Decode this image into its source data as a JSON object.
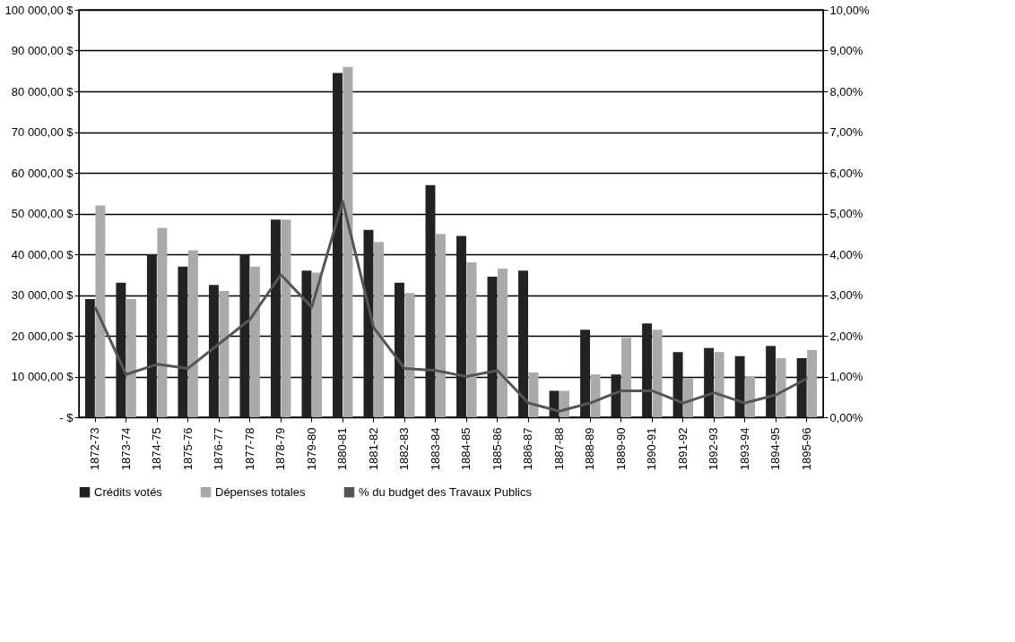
{
  "chart_data": {
    "type": "bar",
    "categories": [
      "1872-73",
      "1873-74",
      "1874-75",
      "1875-76",
      "1876-77",
      "1877-78",
      "1878-79",
      "1879-80",
      "1880-81",
      "1881-82",
      "1882-83",
      "1883-84",
      "1884-85",
      "1885-86",
      "1886-87",
      "1887-88",
      "1888-89",
      "1889-90",
      "1890-91",
      "1891-92",
      "1892-93",
      "1893-94",
      "1894-95",
      "1895-96"
    ],
    "series": [
      {
        "name": "Crédits votés",
        "color": "#222222",
        "values": [
          29000,
          33000,
          40000,
          37000,
          32500,
          40000,
          48500,
          36000,
          84500,
          46000,
          33000,
          57000,
          44500,
          34500,
          36000,
          6500,
          21500,
          10500,
          23000,
          16000,
          17000,
          15000,
          17500,
          14500
        ]
      },
      {
        "name": "Dépenses totales",
        "color": "#aaaaaa",
        "values": [
          52000,
          29000,
          46500,
          41000,
          31000,
          37000,
          48500,
          35500,
          86000,
          43000,
          30500,
          45000,
          38000,
          36500,
          11000,
          6500,
          10500,
          19500,
          21500,
          9500,
          16000,
          10000,
          14500,
          16500
        ]
      },
      {
        "name": "% du budget des Travaux Publics",
        "type": "line",
        "axis": "y2",
        "color": "#555555",
        "values": [
          2.7,
          1.05,
          1.3,
          1.2,
          1.8,
          2.4,
          3.5,
          2.7,
          5.3,
          2.2,
          1.2,
          1.15,
          1.0,
          1.15,
          0.35,
          0.15,
          0.35,
          0.65,
          0.65,
          0.35,
          0.6,
          0.35,
          0.55,
          0.95
        ]
      }
    ],
    "ylim": [
      0,
      100000
    ],
    "yticks": [
      {
        "value": 0,
        "label": "-   $"
      },
      {
        "value": 10000,
        "label": "10 000,00 $"
      },
      {
        "value": 20000,
        "label": "20 000,00 $"
      },
      {
        "value": 30000,
        "label": "30 000,00 $"
      },
      {
        "value": 40000,
        "label": "40 000,00 $"
      },
      {
        "value": 50000,
        "label": "50 000,00 $"
      },
      {
        "value": 60000,
        "label": "60 000,00 $"
      },
      {
        "value": 70000,
        "label": "70 000,00 $"
      },
      {
        "value": 80000,
        "label": "80 000,00 $"
      },
      {
        "value": 90000,
        "label": "90 000,00 $"
      },
      {
        "value": 100000,
        "label": "100 000,00 $"
      }
    ],
    "y2lim": [
      0,
      10
    ],
    "y2ticks": [
      {
        "value": 0,
        "label": "0,00%"
      },
      {
        "value": 1,
        "label": "1,00%"
      },
      {
        "value": 2,
        "label": "2,00%"
      },
      {
        "value": 3,
        "label": "3,00%"
      },
      {
        "value": 4,
        "label": "4,00%"
      },
      {
        "value": 5,
        "label": "5,00%"
      },
      {
        "value": 6,
        "label": "6,00%"
      },
      {
        "value": 7,
        "label": "7,00%"
      },
      {
        "value": 8,
        "label": "8,00%"
      },
      {
        "value": 9,
        "label": "9,00%"
      },
      {
        "value": 10,
        "label": "10,00%"
      }
    ],
    "grid": "y",
    "legend": "bottom"
  }
}
